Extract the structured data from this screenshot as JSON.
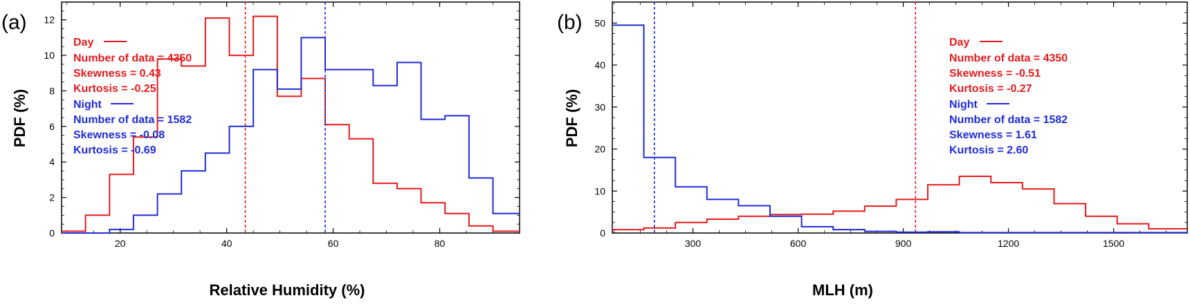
{
  "chart_data": [
    {
      "type": "histogram-step",
      "panel_label": "(a)",
      "xlabel": "Relative Humidity (%)",
      "ylabel": "PDF (%)",
      "xlim": [
        9,
        95
      ],
      "ylim": [
        0,
        13
      ],
      "xticks": [
        20,
        40,
        60,
        80
      ],
      "yticks": [
        0,
        2,
        4,
        6,
        8,
        10,
        12
      ],
      "bin_edges": [
        9,
        13.5,
        18,
        22.5,
        27,
        31.5,
        36,
        40.5,
        45,
        49.5,
        54,
        58.5,
        63,
        67.5,
        72,
        76.5,
        81,
        85.5,
        90,
        95
      ],
      "series": [
        {
          "name": "Day",
          "color": "#e31a1c",
          "values": [
            0.1,
            1.0,
            3.3,
            5.4,
            9.8,
            9.4,
            12.1,
            10.0,
            12.2,
            7.7,
            8.7,
            6.1,
            5.3,
            2.8,
            2.5,
            1.7,
            1.1,
            0.4,
            0.1
          ],
          "mean": 43.5
        },
        {
          "name": "Night",
          "color": "#1f2bd6",
          "values": [
            0.0,
            0.0,
            0.2,
            1.0,
            2.2,
            3.5,
            4.5,
            6.0,
            9.2,
            8.1,
            11.0,
            9.2,
            9.2,
            8.3,
            9.6,
            6.4,
            6.6,
            3.1,
            1.1
          ],
          "mean": 58.5
        }
      ],
      "annotations": {
        "day_label": "Day",
        "day_n": "Number of data = 4350",
        "day_skew": "Skewness = 0.43",
        "day_kurt": "Kurtosis = -0.25",
        "night_label": "Night",
        "night_n": "Number of data = 1582",
        "night_skew": "Skewness = -0.08",
        "night_kurt": "Kurtosis = -0.69"
      }
    },
    {
      "type": "histogram-step",
      "panel_label": "(b)",
      "xlabel": "MLH (m)",
      "ylabel": "PDF (%)",
      "xlim": [
        70,
        1710
      ],
      "ylim": [
        0,
        55
      ],
      "xticks": [
        300,
        600,
        900,
        1200,
        1500
      ],
      "yticks": [
        0,
        10,
        20,
        30,
        40,
        50
      ],
      "bin_edges": [
        70,
        160,
        250,
        340,
        430,
        520,
        610,
        700,
        790,
        880,
        970,
        1060,
        1150,
        1240,
        1330,
        1420,
        1510,
        1600,
        1710
      ],
      "series": [
        {
          "name": "Day",
          "color": "#e31a1c",
          "values": [
            0.8,
            1.2,
            2.5,
            3.3,
            4.0,
            4.4,
            4.5,
            5.2,
            6.4,
            8.0,
            11.5,
            13.5,
            12.0,
            10.5,
            7.0,
            4.0,
            2.2,
            1.0
          ],
          "mean": 935
        },
        {
          "name": "Night",
          "color": "#1f2bd6",
          "values": [
            49.5,
            18.0,
            11.0,
            8.0,
            6.5,
            4.0,
            1.5,
            0.8,
            0.4,
            0.2,
            0.3,
            0.1,
            0.1,
            0.1,
            0.1,
            0.1,
            0.1,
            0.1
          ],
          "mean": 190
        }
      ],
      "annotations": {
        "day_label": "Day",
        "day_n": "Number of data = 4350",
        "day_skew": "Skewness = -0.51",
        "day_kurt": "Kurtosis = -0.27",
        "night_label": "Night",
        "night_n": "Number of data = 1582",
        "night_skew": "Skewness = 1.61",
        "night_kurt": "Kurtosis = 2.60"
      }
    }
  ]
}
